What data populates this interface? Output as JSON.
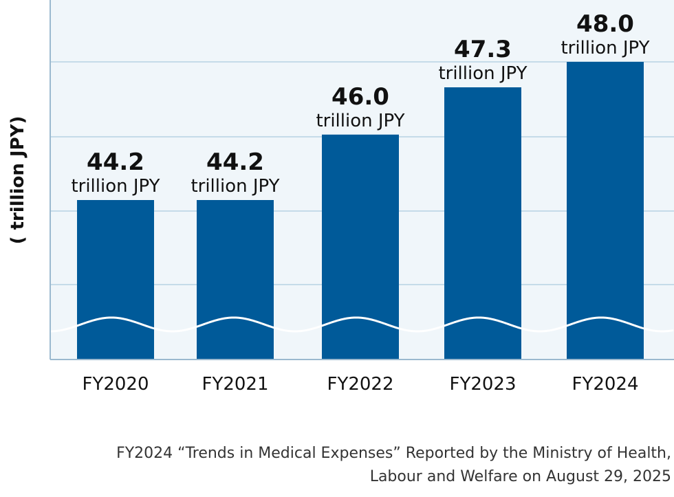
{
  "chart_data": {
    "type": "bar",
    "categories": [
      "FY2020",
      "FY2021",
      "FY2022",
      "FY2023",
      "FY2024"
    ],
    "values": [
      44.2,
      44.2,
      46.0,
      47.3,
      48.0
    ],
    "value_labels": [
      "44.2",
      "44.2",
      "46.0",
      "47.3",
      "48.0"
    ],
    "unit_label": "trillion JPY",
    "title": "",
    "xlabel": "",
    "ylabel": "( trillion JPY)",
    "axis_break": true,
    "grid": true,
    "colors": {
      "bar": "#005a99",
      "plot_background": "#f0f6fa",
      "grid": "#c5dbe9",
      "axis": "#9bb9cf"
    }
  },
  "source": {
    "line1": "FY2024 “Trends in Medical Expenses” Reported by the Ministry of Health,",
    "line2": "Labour and Welfare on August 29, 2025"
  }
}
